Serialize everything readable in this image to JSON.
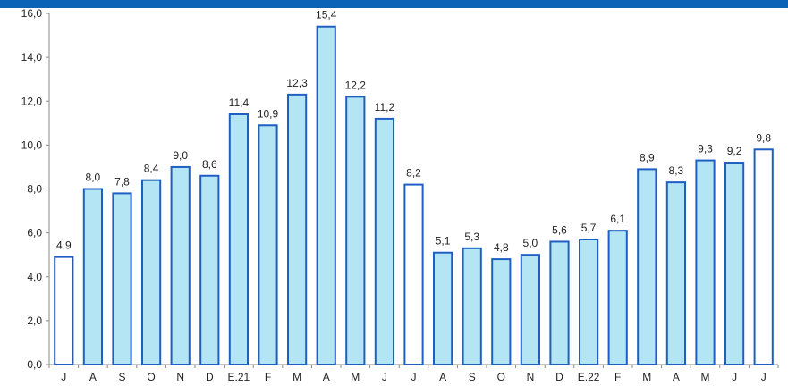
{
  "chart_data": {
    "type": "bar",
    "categories": [
      "J",
      "A",
      "S",
      "O",
      "N",
      "D",
      "E.21",
      "F",
      "M",
      "A",
      "M",
      "J",
      "J",
      "A",
      "S",
      "O",
      "N",
      "D",
      "E.22",
      "F",
      "M",
      "A",
      "M",
      "J",
      "J"
    ],
    "values": [
      4.9,
      8.0,
      7.8,
      8.4,
      9.0,
      8.6,
      11.4,
      10.9,
      12.3,
      15.4,
      12.2,
      11.2,
      8.2,
      5.1,
      5.3,
      4.8,
      5.0,
      5.6,
      5.7,
      6.1,
      8.9,
      8.3,
      9.3,
      9.2,
      9.8
    ],
    "value_labels": [
      "4,9",
      "8,0",
      "7,8",
      "8,4",
      "9,0",
      "8,6",
      "11,4",
      "10,9",
      "12,3",
      "15,4",
      "12,2",
      "11,2",
      "8,2",
      "5,1",
      "5,3",
      "4,8",
      "5,0",
      "5,6",
      "5,7",
      "6,1",
      "8,9",
      "8,3",
      "9,3",
      "9,2",
      "9,8"
    ],
    "highlight": [
      true,
      false,
      false,
      false,
      false,
      false,
      false,
      false,
      false,
      false,
      false,
      false,
      true,
      false,
      false,
      false,
      false,
      false,
      false,
      false,
      false,
      false,
      false,
      false,
      true
    ],
    "y_ticks": [
      "0,0",
      "2,0",
      "4,0",
      "6,0",
      "8,0",
      "10,0",
      "12,0",
      "14,0",
      "16,0"
    ],
    "ylim": [
      0,
      16
    ],
    "grid": false,
    "colors": {
      "bar_fill": "#b3e5f5",
      "bar_fill_highlight": "#ffffff",
      "bar_stroke": "#1f5fc4",
      "header_band": "#0a63b7",
      "axis": "#888888"
    }
  }
}
